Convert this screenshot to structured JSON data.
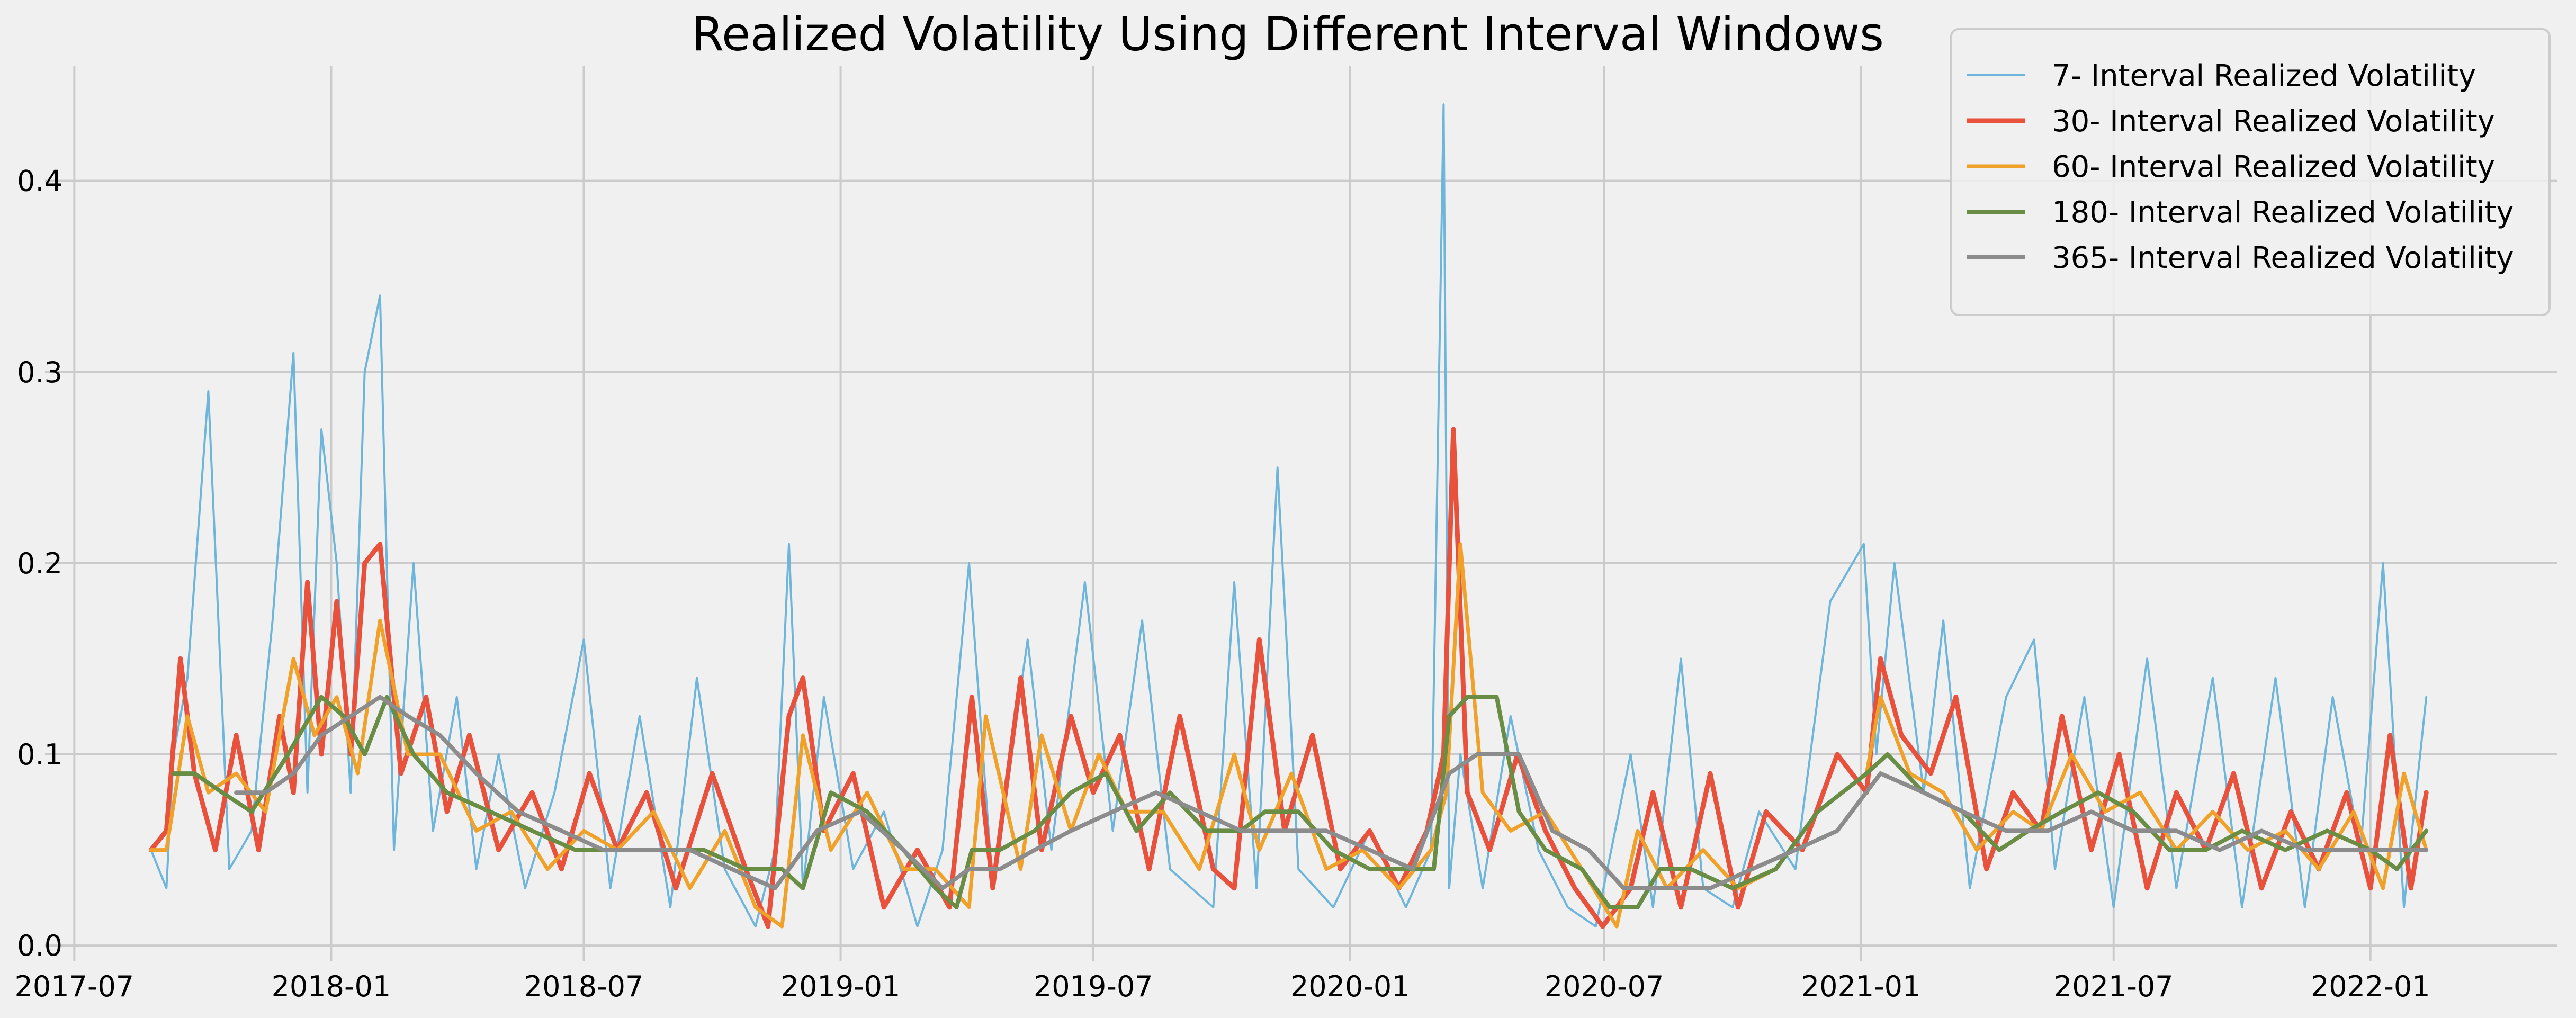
{
  "chart_data": {
    "type": "line",
    "title": "Realized Volatility Using Different Interval Windows",
    "xlabel": "",
    "ylabel": "",
    "xlim": [
      "2017-06-10",
      "2022-05-15"
    ],
    "ylim": [
      -0.008,
      0.46
    ],
    "grid": true,
    "legend_position": "top-right",
    "x_ticks": [
      {
        "date": "2017-07-01",
        "label": "2017-07"
      },
      {
        "date": "2018-01-01",
        "label": "2018-01"
      },
      {
        "date": "2018-07-01",
        "label": "2018-07"
      },
      {
        "date": "2019-01-01",
        "label": "2019-01"
      },
      {
        "date": "2019-07-01",
        "label": "2019-07"
      },
      {
        "date": "2020-01-01",
        "label": "2020-01"
      },
      {
        "date": "2020-07-01",
        "label": "2020-07"
      },
      {
        "date": "2021-01-01",
        "label": "2021-01"
      },
      {
        "date": "2021-07-01",
        "label": "2021-07"
      },
      {
        "date": "2022-01-01",
        "label": "2022-01"
      }
    ],
    "y_ticks": [
      {
        "value": 0.0,
        "label": "0.0"
      },
      {
        "value": 0.1,
        "label": "0.1"
      },
      {
        "value": 0.2,
        "label": "0.2"
      },
      {
        "value": 0.3,
        "label": "0.3"
      },
      {
        "value": 0.4,
        "label": "0.4"
      }
    ],
    "series": [
      {
        "name": "7- Interval Realized Volatility",
        "color": "#6eb5dc",
        "x": [
          "2017-08-25",
          "2017-09-05",
          "2017-09-10",
          "2017-09-20",
          "2017-10-05",
          "2017-10-20",
          "2017-11-05",
          "2017-11-20",
          "2017-12-05",
          "2017-12-15",
          "2017-12-25",
          "2018-01-05",
          "2018-01-15",
          "2018-01-25",
          "2018-02-05",
          "2018-02-15",
          "2018-03-01",
          "2018-03-15",
          "2018-04-01",
          "2018-04-15",
          "2018-05-01",
          "2018-05-20",
          "2018-06-10",
          "2018-07-01",
          "2018-07-20",
          "2018-08-10",
          "2018-09-01",
          "2018-09-20",
          "2018-10-10",
          "2018-11-01",
          "2018-11-15",
          "2018-11-25",
          "2018-12-05",
          "2018-12-20",
          "2019-01-10",
          "2019-02-01",
          "2019-02-25",
          "2019-03-15",
          "2019-04-03",
          "2019-04-20",
          "2019-05-15",
          "2019-06-01",
          "2019-06-25",
          "2019-07-15",
          "2019-08-05",
          "2019-08-25",
          "2019-09-25",
          "2019-10-10",
          "2019-10-26",
          "2019-11-10",
          "2019-11-25",
          "2019-12-20",
          "2020-01-15",
          "2020-02-10",
          "2020-02-28",
          "2020-03-08",
          "2020-03-12",
          "2020-03-20",
          "2020-04-05",
          "2020-04-25",
          "2020-05-15",
          "2020-06-05",
          "2020-06-25",
          "2020-07-20",
          "2020-08-05",
          "2020-08-25",
          "2020-09-10",
          "2020-10-01",
          "2020-10-20",
          "2020-11-15",
          "2020-12-10",
          "2021-01-03",
          "2021-01-12",
          "2021-01-25",
          "2021-02-15",
          "2021-03-01",
          "2021-03-20",
          "2021-04-15",
          "2021-05-05",
          "2021-05-20",
          "2021-06-10",
          "2021-07-01",
          "2021-07-25",
          "2021-08-15",
          "2021-09-10",
          "2021-10-01",
          "2021-10-25",
          "2021-11-15",
          "2021-12-05",
          "2021-12-25",
          "2022-01-10",
          "2022-01-25",
          "2022-02-10"
        ],
        "y": [
          0.05,
          0.03,
          0.1,
          0.14,
          0.29,
          0.04,
          0.06,
          0.17,
          0.31,
          0.08,
          0.27,
          0.2,
          0.08,
          0.3,
          0.34,
          0.05,
          0.2,
          0.06,
          0.13,
          0.04,
          0.1,
          0.03,
          0.08,
          0.16,
          0.03,
          0.12,
          0.02,
          0.14,
          0.04,
          0.01,
          0.05,
          0.21,
          0.03,
          0.13,
          0.04,
          0.07,
          0.01,
          0.05,
          0.2,
          0.03,
          0.16,
          0.05,
          0.19,
          0.06,
          0.17,
          0.04,
          0.02,
          0.19,
          0.03,
          0.25,
          0.04,
          0.02,
          0.06,
          0.02,
          0.05,
          0.44,
          0.03,
          0.1,
          0.03,
          0.12,
          0.05,
          0.02,
          0.01,
          0.1,
          0.02,
          0.15,
          0.03,
          0.02,
          0.07,
          0.04,
          0.18,
          0.21,
          0.1,
          0.2,
          0.08,
          0.17,
          0.03,
          0.13,
          0.16,
          0.04,
          0.13,
          0.02,
          0.15,
          0.03,
          0.14,
          0.02,
          0.14,
          0.02,
          0.13,
          0.05,
          0.2,
          0.02,
          0.13
        ]
      },
      {
        "name": "30- Interval Realized Volatility",
        "color": "#e8513c",
        "x": [
          "2017-08-25",
          "2017-09-05",
          "2017-09-15",
          "2017-09-25",
          "2017-10-10",
          "2017-10-25",
          "2017-11-10",
          "2017-11-25",
          "2017-12-05",
          "2017-12-15",
          "2017-12-25",
          "2018-01-05",
          "2018-01-15",
          "2018-01-25",
          "2018-02-05",
          "2018-02-20",
          "2018-03-10",
          "2018-03-25",
          "2018-04-10",
          "2018-05-01",
          "2018-05-25",
          "2018-06-15",
          "2018-07-05",
          "2018-07-25",
          "2018-08-15",
          "2018-09-05",
          "2018-10-01",
          "2018-10-25",
          "2018-11-10",
          "2018-11-25",
          "2018-12-05",
          "2018-12-20",
          "2019-01-10",
          "2019-02-01",
          "2019-02-25",
          "2019-03-20",
          "2019-04-05",
          "2019-04-20",
          "2019-05-10",
          "2019-05-25",
          "2019-06-15",
          "2019-07-01",
          "2019-07-20",
          "2019-08-10",
          "2019-09-01",
          "2019-09-25",
          "2019-10-10",
          "2019-10-28",
          "2019-11-15",
          "2019-12-05",
          "2019-12-25",
          "2020-01-15",
          "2020-02-05",
          "2020-02-25",
          "2020-03-08",
          "2020-03-15",
          "2020-03-25",
          "2020-04-10",
          "2020-04-30",
          "2020-05-20",
          "2020-06-10",
          "2020-06-30",
          "2020-07-20",
          "2020-08-05",
          "2020-08-25",
          "2020-09-15",
          "2020-10-05",
          "2020-10-25",
          "2020-11-20",
          "2020-12-15",
          "2021-01-05",
          "2021-01-15",
          "2021-01-30",
          "2021-02-20",
          "2021-03-10",
          "2021-04-01",
          "2021-04-20",
          "2021-05-10",
          "2021-05-25",
          "2021-06-15",
          "2021-07-05",
          "2021-07-25",
          "2021-08-15",
          "2021-09-05",
          "2021-09-25",
          "2021-10-15",
          "2021-11-05",
          "2021-11-25",
          "2021-12-15",
          "2022-01-01",
          "2022-01-15",
          "2022-01-30",
          "2022-02-10"
        ],
        "y": [
          0.05,
          0.06,
          0.15,
          0.09,
          0.05,
          0.11,
          0.05,
          0.12,
          0.08,
          0.19,
          0.1,
          0.18,
          0.1,
          0.2,
          0.21,
          0.09,
          0.13,
          0.07,
          0.11,
          0.05,
          0.08,
          0.04,
          0.09,
          0.05,
          0.08,
          0.03,
          0.09,
          0.04,
          0.01,
          0.12,
          0.14,
          0.06,
          0.09,
          0.02,
          0.05,
          0.02,
          0.13,
          0.03,
          0.14,
          0.05,
          0.12,
          0.08,
          0.11,
          0.04,
          0.12,
          0.04,
          0.03,
          0.16,
          0.06,
          0.11,
          0.04,
          0.06,
          0.03,
          0.06,
          0.1,
          0.27,
          0.08,
          0.05,
          0.1,
          0.06,
          0.03,
          0.01,
          0.03,
          0.08,
          0.02,
          0.09,
          0.02,
          0.07,
          0.05,
          0.1,
          0.08,
          0.15,
          0.11,
          0.09,
          0.13,
          0.04,
          0.08,
          0.06,
          0.12,
          0.05,
          0.1,
          0.03,
          0.08,
          0.05,
          0.09,
          0.03,
          0.07,
          0.04,
          0.08,
          0.03,
          0.11,
          0.03,
          0.08
        ]
      },
      {
        "name": "60- Interval Realized Volatility",
        "color": "#f0a12a",
        "x": [
          "2017-08-25",
          "2017-09-05",
          "2017-09-20",
          "2017-10-05",
          "2017-10-25",
          "2017-11-15",
          "2017-12-05",
          "2017-12-20",
          "2018-01-05",
          "2018-01-20",
          "2018-02-05",
          "2018-02-25",
          "2018-03-20",
          "2018-04-15",
          "2018-05-10",
          "2018-06-05",
          "2018-07-01",
          "2018-07-25",
          "2018-08-20",
          "2018-09-15",
          "2018-10-10",
          "2018-11-01",
          "2018-11-20",
          "2018-12-05",
          "2018-12-25",
          "2019-01-20",
          "2019-02-15",
          "2019-03-10",
          "2019-04-03",
          "2019-04-15",
          "2019-05-10",
          "2019-05-25",
          "2019-06-15",
          "2019-07-05",
          "2019-07-25",
          "2019-08-20",
          "2019-09-15",
          "2019-10-10",
          "2019-10-28",
          "2019-11-20",
          "2019-12-15",
          "2020-01-10",
          "2020-02-05",
          "2020-02-28",
          "2020-03-10",
          "2020-03-20",
          "2020-04-05",
          "2020-04-25",
          "2020-05-20",
          "2020-06-15",
          "2020-07-10",
          "2020-07-25",
          "2020-08-15",
          "2020-09-10",
          "2020-10-05",
          "2020-11-01",
          "2020-12-01",
          "2021-01-05",
          "2021-01-15",
          "2021-02-05",
          "2021-03-01",
          "2021-03-25",
          "2021-04-20",
          "2021-05-10",
          "2021-06-01",
          "2021-06-25",
          "2021-07-20",
          "2021-08-15",
          "2021-09-10",
          "2021-10-05",
          "2021-11-01",
          "2021-11-25",
          "2021-12-20",
          "2022-01-10",
          "2022-01-25",
          "2022-02-10"
        ],
        "y": [
          0.05,
          0.05,
          0.12,
          0.08,
          0.09,
          0.07,
          0.15,
          0.11,
          0.13,
          0.09,
          0.17,
          0.1,
          0.1,
          0.06,
          0.07,
          0.04,
          0.06,
          0.05,
          0.07,
          0.03,
          0.06,
          0.02,
          0.01,
          0.11,
          0.05,
          0.08,
          0.04,
          0.04,
          0.02,
          0.12,
          0.04,
          0.11,
          0.06,
          0.1,
          0.07,
          0.07,
          0.04,
          0.1,
          0.05,
          0.09,
          0.04,
          0.05,
          0.03,
          0.05,
          0.08,
          0.21,
          0.08,
          0.06,
          0.07,
          0.04,
          0.01,
          0.06,
          0.03,
          0.05,
          0.03,
          0.04,
          0.07,
          0.09,
          0.13,
          0.09,
          0.08,
          0.05,
          0.07,
          0.06,
          0.1,
          0.07,
          0.08,
          0.05,
          0.07,
          0.05,
          0.06,
          0.04,
          0.07,
          0.03,
          0.09,
          0.05
        ]
      },
      {
        "name": "180- Interval Realized Volatility",
        "color": "#6a8d45",
        "x": [
          "2017-09-10",
          "2017-09-25",
          "2017-10-15",
          "2017-11-05",
          "2017-12-01",
          "2017-12-25",
          "2018-01-10",
          "2018-01-25",
          "2018-02-10",
          "2018-03-01",
          "2018-03-25",
          "2018-04-25",
          "2018-05-25",
          "2018-06-25",
          "2018-07-25",
          "2018-08-25",
          "2018-09-25",
          "2018-10-25",
          "2018-11-20",
          "2018-12-05",
          "2018-12-25",
          "2019-01-20",
          "2019-02-15",
          "2019-03-10",
          "2019-03-25",
          "2019-04-05",
          "2019-04-25",
          "2019-05-20",
          "2019-06-15",
          "2019-07-10",
          "2019-08-01",
          "2019-08-25",
          "2019-09-20",
          "2019-10-15",
          "2019-11-01",
          "2019-11-25",
          "2019-12-20",
          "2020-01-15",
          "2020-02-10",
          "2020-03-01",
          "2020-03-12",
          "2020-03-25",
          "2020-04-15",
          "2020-05-01",
          "2020-05-20",
          "2020-06-15",
          "2020-07-05",
          "2020-07-25",
          "2020-08-10",
          "2020-09-01",
          "2020-10-01",
          "2020-11-01",
          "2020-12-01",
          "2021-01-05",
          "2021-01-20",
          "2021-02-15",
          "2021-03-15",
          "2021-04-10",
          "2021-05-01",
          "2021-05-25",
          "2021-06-20",
          "2021-07-15",
          "2021-08-10",
          "2021-09-05",
          "2021-10-01",
          "2021-11-01",
          "2021-12-01",
          "2022-01-01",
          "2022-01-20",
          "2022-02-10"
        ],
        "y": [
          0.09,
          0.09,
          0.08,
          0.07,
          0.1,
          0.13,
          0.12,
          0.1,
          0.13,
          0.1,
          0.08,
          0.07,
          0.06,
          0.05,
          0.05,
          0.05,
          0.05,
          0.04,
          0.04,
          0.03,
          0.08,
          0.07,
          0.05,
          0.03,
          0.02,
          0.05,
          0.05,
          0.06,
          0.08,
          0.09,
          0.06,
          0.08,
          0.06,
          0.06,
          0.07,
          0.07,
          0.05,
          0.04,
          0.04,
          0.04,
          0.12,
          0.13,
          0.13,
          0.07,
          0.05,
          0.04,
          0.02,
          0.02,
          0.04,
          0.04,
          0.03,
          0.04,
          0.07,
          0.09,
          0.1,
          0.08,
          0.07,
          0.05,
          0.06,
          0.07,
          0.08,
          0.07,
          0.05,
          0.05,
          0.06,
          0.05,
          0.06,
          0.05,
          0.04,
          0.06
        ]
      },
      {
        "name": "365- Interval Realized Volatility",
        "color": "#8c8c8c",
        "x": [
          "2017-10-25",
          "2017-11-15",
          "2017-12-05",
          "2017-12-25",
          "2018-01-15",
          "2018-02-05",
          "2018-02-25",
          "2018-03-20",
          "2018-04-15",
          "2018-05-15",
          "2018-06-15",
          "2018-07-15",
          "2018-08-15",
          "2018-09-15",
          "2018-10-15",
          "2018-11-15",
          "2018-12-15",
          "2019-01-15",
          "2019-02-15",
          "2019-03-15",
          "2019-04-03",
          "2019-04-25",
          "2019-05-20",
          "2019-06-15",
          "2019-07-15",
          "2019-08-15",
          "2019-09-15",
          "2019-10-15",
          "2019-11-15",
          "2019-12-15",
          "2020-01-15",
          "2020-02-15",
          "2020-03-12",
          "2020-04-01",
          "2020-05-01",
          "2020-05-25",
          "2020-06-20",
          "2020-07-15",
          "2020-08-15",
          "2020-09-15",
          "2020-10-15",
          "2020-11-15",
          "2020-12-15",
          "2021-01-15",
          "2021-02-15",
          "2021-03-15",
          "2021-04-15",
          "2021-05-15",
          "2021-06-15",
          "2021-07-15",
          "2021-08-15",
          "2021-09-15",
          "2021-10-15",
          "2021-11-15",
          "2021-12-15",
          "2022-01-15",
          "2022-02-10"
        ],
        "y": [
          0.08,
          0.08,
          0.09,
          0.11,
          0.12,
          0.13,
          0.12,
          0.11,
          0.09,
          0.07,
          0.06,
          0.05,
          0.05,
          0.05,
          0.04,
          0.03,
          0.06,
          0.07,
          0.05,
          0.03,
          0.04,
          0.04,
          0.05,
          0.06,
          0.07,
          0.08,
          0.07,
          0.06,
          0.06,
          0.06,
          0.05,
          0.04,
          0.09,
          0.1,
          0.1,
          0.06,
          0.05,
          0.03,
          0.03,
          0.03,
          0.04,
          0.05,
          0.06,
          0.09,
          0.08,
          0.07,
          0.06,
          0.06,
          0.07,
          0.06,
          0.06,
          0.05,
          0.06,
          0.05,
          0.05,
          0.05,
          0.05
        ]
      }
    ]
  }
}
